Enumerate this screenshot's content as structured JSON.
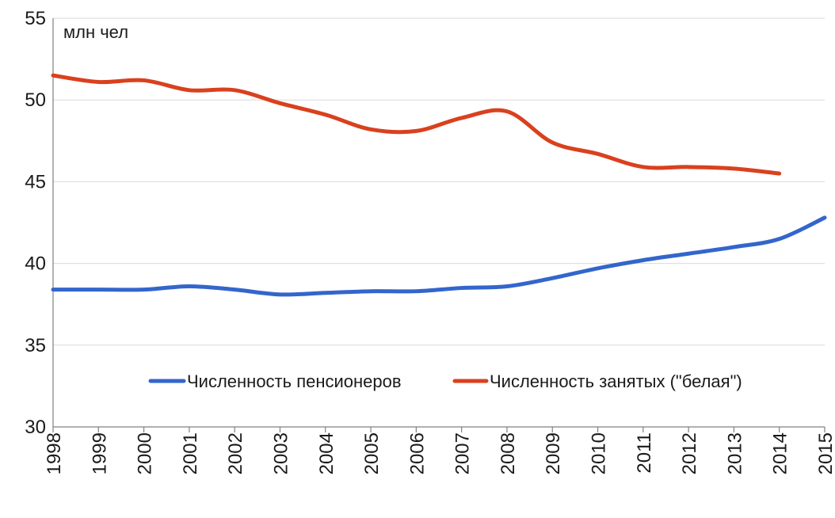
{
  "chart_data": {
    "type": "line",
    "unit_label": "млн чел",
    "x": [
      "1998",
      "1999",
      "2000",
      "2001",
      "2002",
      "2003",
      "2004",
      "2005",
      "2006",
      "2007",
      "2008",
      "2009",
      "2010",
      "2011",
      "2012",
      "2013",
      "2014",
      "2015"
    ],
    "ylim": [
      30,
      55
    ],
    "yticks": [
      30,
      35,
      40,
      45,
      50,
      55
    ],
    "grid": true,
    "legend_position": "bottom-center",
    "series": [
      {
        "name": "Численность пенсионеров",
        "color": "#3366cc",
        "values": [
          38.4,
          38.4,
          38.4,
          38.6,
          38.4,
          38.1,
          38.2,
          38.3,
          38.3,
          38.5,
          38.6,
          39.1,
          39.7,
          40.2,
          40.6,
          41.0,
          41.5,
          42.8
        ]
      },
      {
        "name": "Численность занятых (\"белая\")",
        "color": "#d9411e",
        "values": [
          51.5,
          51.1,
          51.2,
          50.6,
          50.6,
          49.8,
          49.1,
          48.2,
          48.1,
          48.9,
          49.3,
          47.4,
          46.7,
          45.9,
          45.9,
          45.8,
          45.5,
          null
        ]
      }
    ]
  }
}
